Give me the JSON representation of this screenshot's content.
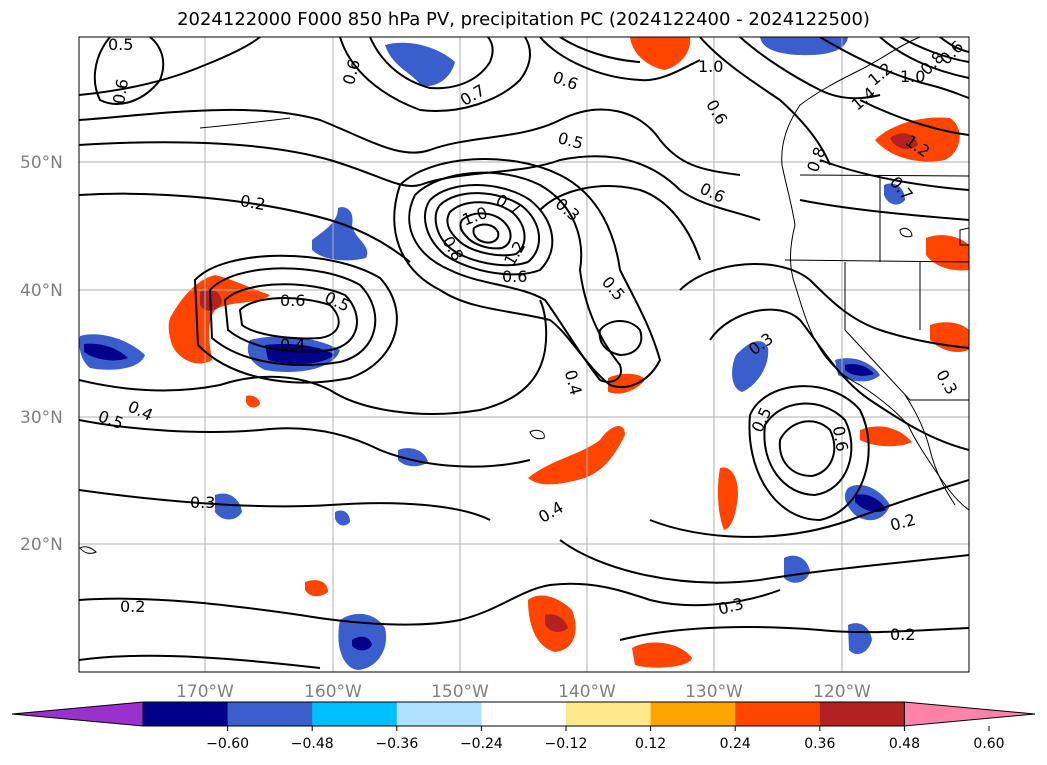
{
  "title": "2024122000 F000 850 hPa PV, precipitation PC (2024122400 - 2024122500)",
  "map": {
    "lat_labels": [
      "50°N",
      "40°N",
      "30°N",
      "20°N"
    ],
    "lon_labels": [
      "170°W",
      "160°W",
      "150°W",
      "140°W",
      "130°W",
      "120°W"
    ],
    "contour_labels": [
      "0.5",
      "0.6",
      "0.6",
      "0.7",
      "0.6",
      "1.0",
      "0.8",
      "0.6",
      "1.2",
      "1.4",
      "1.0",
      "0.5",
      "0.6",
      "0.8",
      "0.6",
      "0.2",
      "1.0",
      "0.7",
      "0.3",
      "0.8",
      "1.2",
      "0.6",
      "0.5",
      "0.6",
      "0.5",
      "0.4",
      "0.3",
      "0.4",
      "0.5",
      "0.4",
      "0.5",
      "0.6",
      "0.3",
      "0.4",
      "0.2",
      "0.3",
      "0.2",
      "0.2",
      "1.2",
      "0.7",
      "0.3"
    ],
    "colors": {
      "land_line": "#000000",
      "grid": "#b0b0b0",
      "contour": "#000000"
    }
  },
  "colorbar": {
    "ticks": [
      "−0.60",
      "−0.48",
      "−0.36",
      "−0.24",
      "−0.12",
      "0.12",
      "0.24",
      "0.36",
      "0.48",
      "0.60"
    ],
    "colors": [
      "#9932cc",
      "#00008b",
      "#3a5fcd",
      "#00bfff",
      "#b0e0ff",
      "#ffffff",
      "#ffe88a",
      "#ffa500",
      "#ff4500",
      "#b22222",
      "#ff82ab"
    ]
  }
}
